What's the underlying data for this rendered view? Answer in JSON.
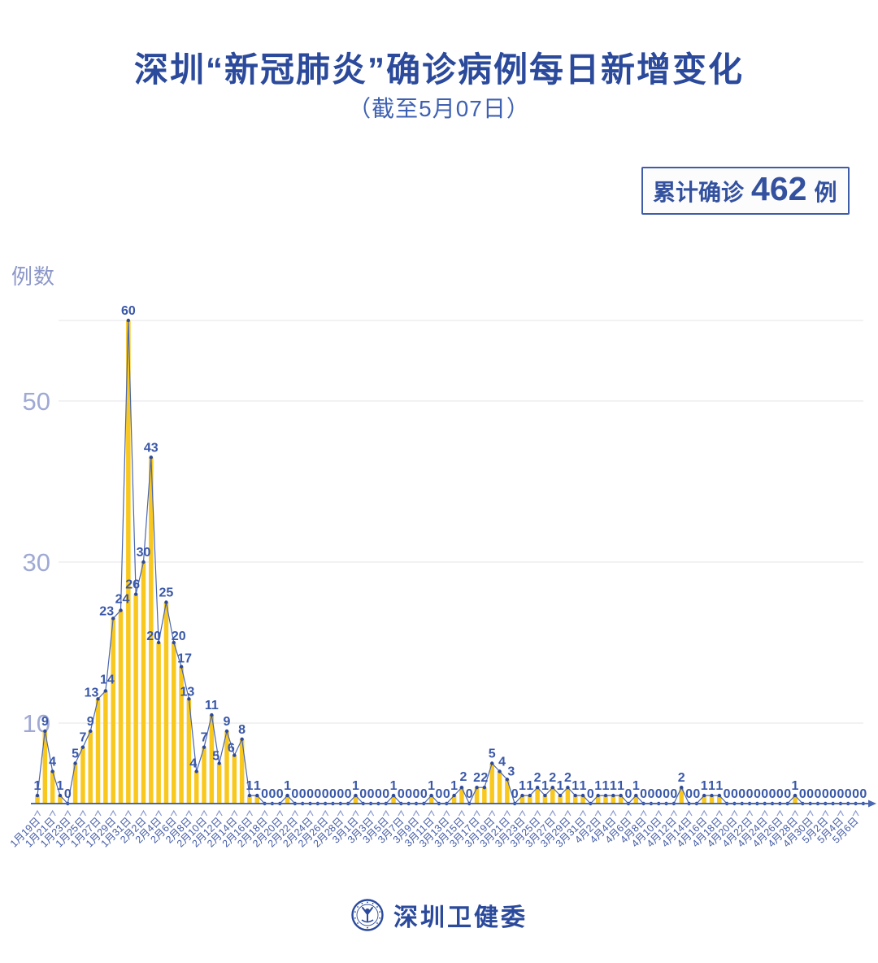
{
  "chart_data": {
    "type": "area",
    "title": "深圳“新冠肺炎”确诊病例每日新增变化",
    "subtitle": "（截至5月07日）",
    "ylabel": "例数",
    "yticks": [
      10,
      30,
      50
    ],
    "grid_levels": [
      10,
      30,
      50,
      60
    ],
    "ylim": [
      0,
      60
    ],
    "tick_every": 2,
    "legend": "none",
    "x_tick_labels": [
      "1月19日",
      "1月21日",
      "1月23日",
      "1月25日",
      "1月27日",
      "1月29日",
      "1月31日",
      "2月2日",
      "2月4日",
      "2月6日",
      "2月8日",
      "2月10日",
      "2月12日",
      "2月14日",
      "2月16日",
      "2月18日",
      "2月20日",
      "2月22日",
      "2月24日",
      "2月26日",
      "2月28日",
      "3月1日",
      "3月3日",
      "3月5日",
      "3月7日",
      "3月9日",
      "3月11日",
      "3月13日",
      "3月15日",
      "3月17日",
      "3月19日",
      "3月21日",
      "3月23日",
      "3月25日",
      "3月27日",
      "3月29日",
      "3月31日",
      "4月2日",
      "4月4日",
      "4月6日",
      "4月8日",
      "4月10日",
      "4月12日",
      "4月14日",
      "4月16日",
      "4月18日",
      "4月20日",
      "4月22日",
      "4月24日",
      "4月26日",
      "4月28日",
      "4月30日",
      "5月2日",
      "5月4日",
      "5月6日"
    ],
    "values": [
      1,
      9,
      4,
      1,
      0,
      5,
      7,
      9,
      13,
      14,
      23,
      24,
      60,
      26,
      30,
      43,
      20,
      25,
      20,
      17,
      13,
      4,
      7,
      11,
      5,
      9,
      6,
      8,
      1,
      1,
      0,
      0,
      0,
      1,
      0,
      0,
      0,
      0,
      0,
      0,
      0,
      0,
      1,
      0,
      0,
      0,
      0,
      1,
      0,
      0,
      0,
      0,
      1,
      0,
      0,
      1,
      2,
      0,
      2,
      2,
      5,
      4,
      3,
      0,
      1,
      1,
      2,
      1,
      2,
      1,
      2,
      1,
      1,
      0,
      1,
      1,
      1,
      1,
      0,
      1,
      0,
      0,
      0,
      0,
      0,
      2,
      0,
      0,
      1,
      1,
      1,
      0,
      0,
      0,
      0,
      0,
      0,
      0,
      0,
      0,
      1,
      0,
      0,
      0,
      0,
      0,
      0,
      0,
      0,
      0
    ],
    "colors": {
      "bar": "#F9C81F",
      "line": "#4A66AF",
      "dot": "#2C4A9C",
      "value_label": "#3A58A8",
      "axis": "#4A68B2",
      "tick": "#8B99CE",
      "x_label": "#445CA6",
      "y_label": "#9FA9D4",
      "grid": "#E4E4E8"
    }
  },
  "badge": {
    "label": "累计确诊",
    "value": "462",
    "unit": "例"
  },
  "footer": {
    "org": "深圳卫健委"
  }
}
